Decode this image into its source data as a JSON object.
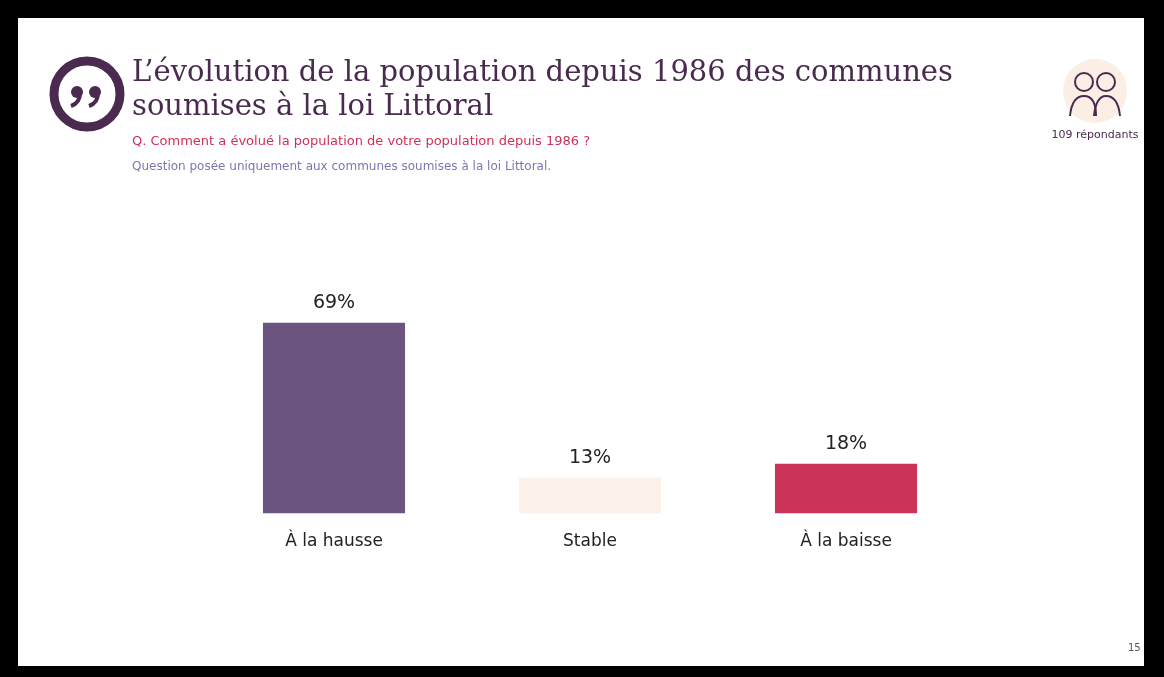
{
  "chart_data": {
    "type": "bar",
    "title": "L’évolution de la population depuis 1986 des communes soumises à la loi Littoral",
    "subtitle": "Q. Comment a évolué la population de votre population depuis 1986 ?",
    "annotations": [
      "Question posée uniquement aux communes soumises à la loi Littoral.",
      "109 répondants",
      "15"
    ],
    "categories": [
      "À la hausse",
      "Stable",
      "À la baisse"
    ],
    "values": [
      69,
      13,
      18
    ],
    "colors": [
      "#6b5580",
      "#fcf1e8",
      "#cc3358"
    ],
    "value_labels": [
      "69%",
      "13%",
      "18%"
    ],
    "grid": false,
    "legend": false
  }
}
